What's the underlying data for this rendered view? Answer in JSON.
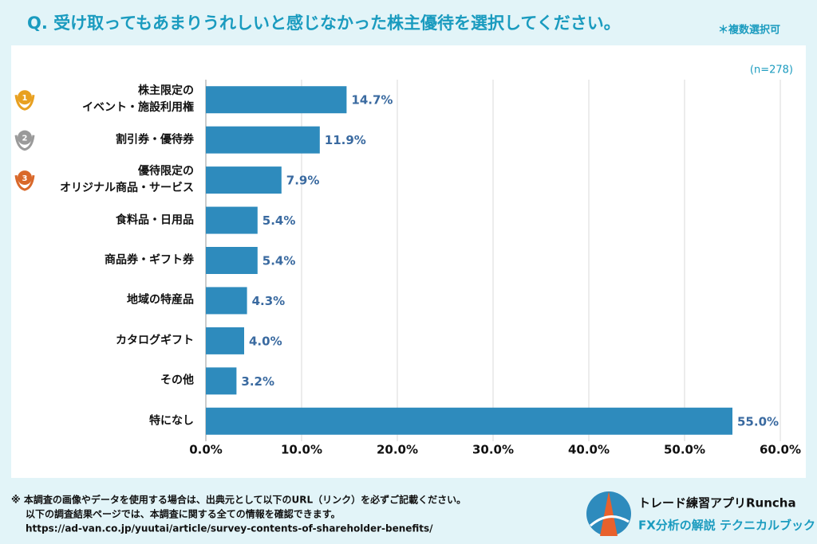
{
  "chart_data": {
    "type": "bar",
    "orientation": "horizontal",
    "title": "Q. 受け取ってもあまりうれしいと感じなかった株主優待を選択してください。",
    "subtitle": "＊複数選択可",
    "sample_size": "(n=278)",
    "categories": [
      "株主限定の\nイベント・施設利用権",
      "割引券・優待券",
      "優待限定の\nオリジナル商品・サービス",
      "食料品・日用品",
      "商品券・ギフト券",
      "地域の特産品",
      "カタログギフト",
      "その他",
      "特になし"
    ],
    "rank_badges": [
      "1",
      "2",
      "3"
    ],
    "values": [
      14.7,
      11.9,
      7.9,
      5.4,
      5.4,
      4.3,
      4.0,
      3.2,
      55.0
    ],
    "value_labels": [
      "14.7%",
      "11.9%",
      "7.9%",
      "5.4%",
      "5.4%",
      "4.3%",
      "4.0%",
      "3.2%",
      "55.0%"
    ],
    "color": "#2e8bbd",
    "xlim": [
      0,
      60
    ],
    "xticks": [
      {
        "value": 0,
        "label": "0.0%"
      },
      {
        "value": 10,
        "label": "10.0%"
      },
      {
        "value": 20,
        "label": "20.0%"
      },
      {
        "value": 30,
        "label": "30.0%"
      },
      {
        "value": 40,
        "label": "40.0%"
      },
      {
        "value": 50,
        "label": "50.0%"
      },
      {
        "value": 60,
        "label": "60.0%"
      }
    ],
    "grid": true
  },
  "footer": {
    "notes": [
      "※ 本調査の画像やデータを使用する場合は、出典元として以下のURL（リンク）を必ずご記載ください。",
      "以下の調査結果ページでは、本調査に関する全ての情報を確認できます。",
      "https://ad-van.co.jp/yuutai/article/survey-contents-of-shareholder-benefits/"
    ],
    "brand": "トレード練習アプリ",
    "brand_name": "Runcha",
    "tagline": "FX分析の解説 テクニカルブック"
  }
}
